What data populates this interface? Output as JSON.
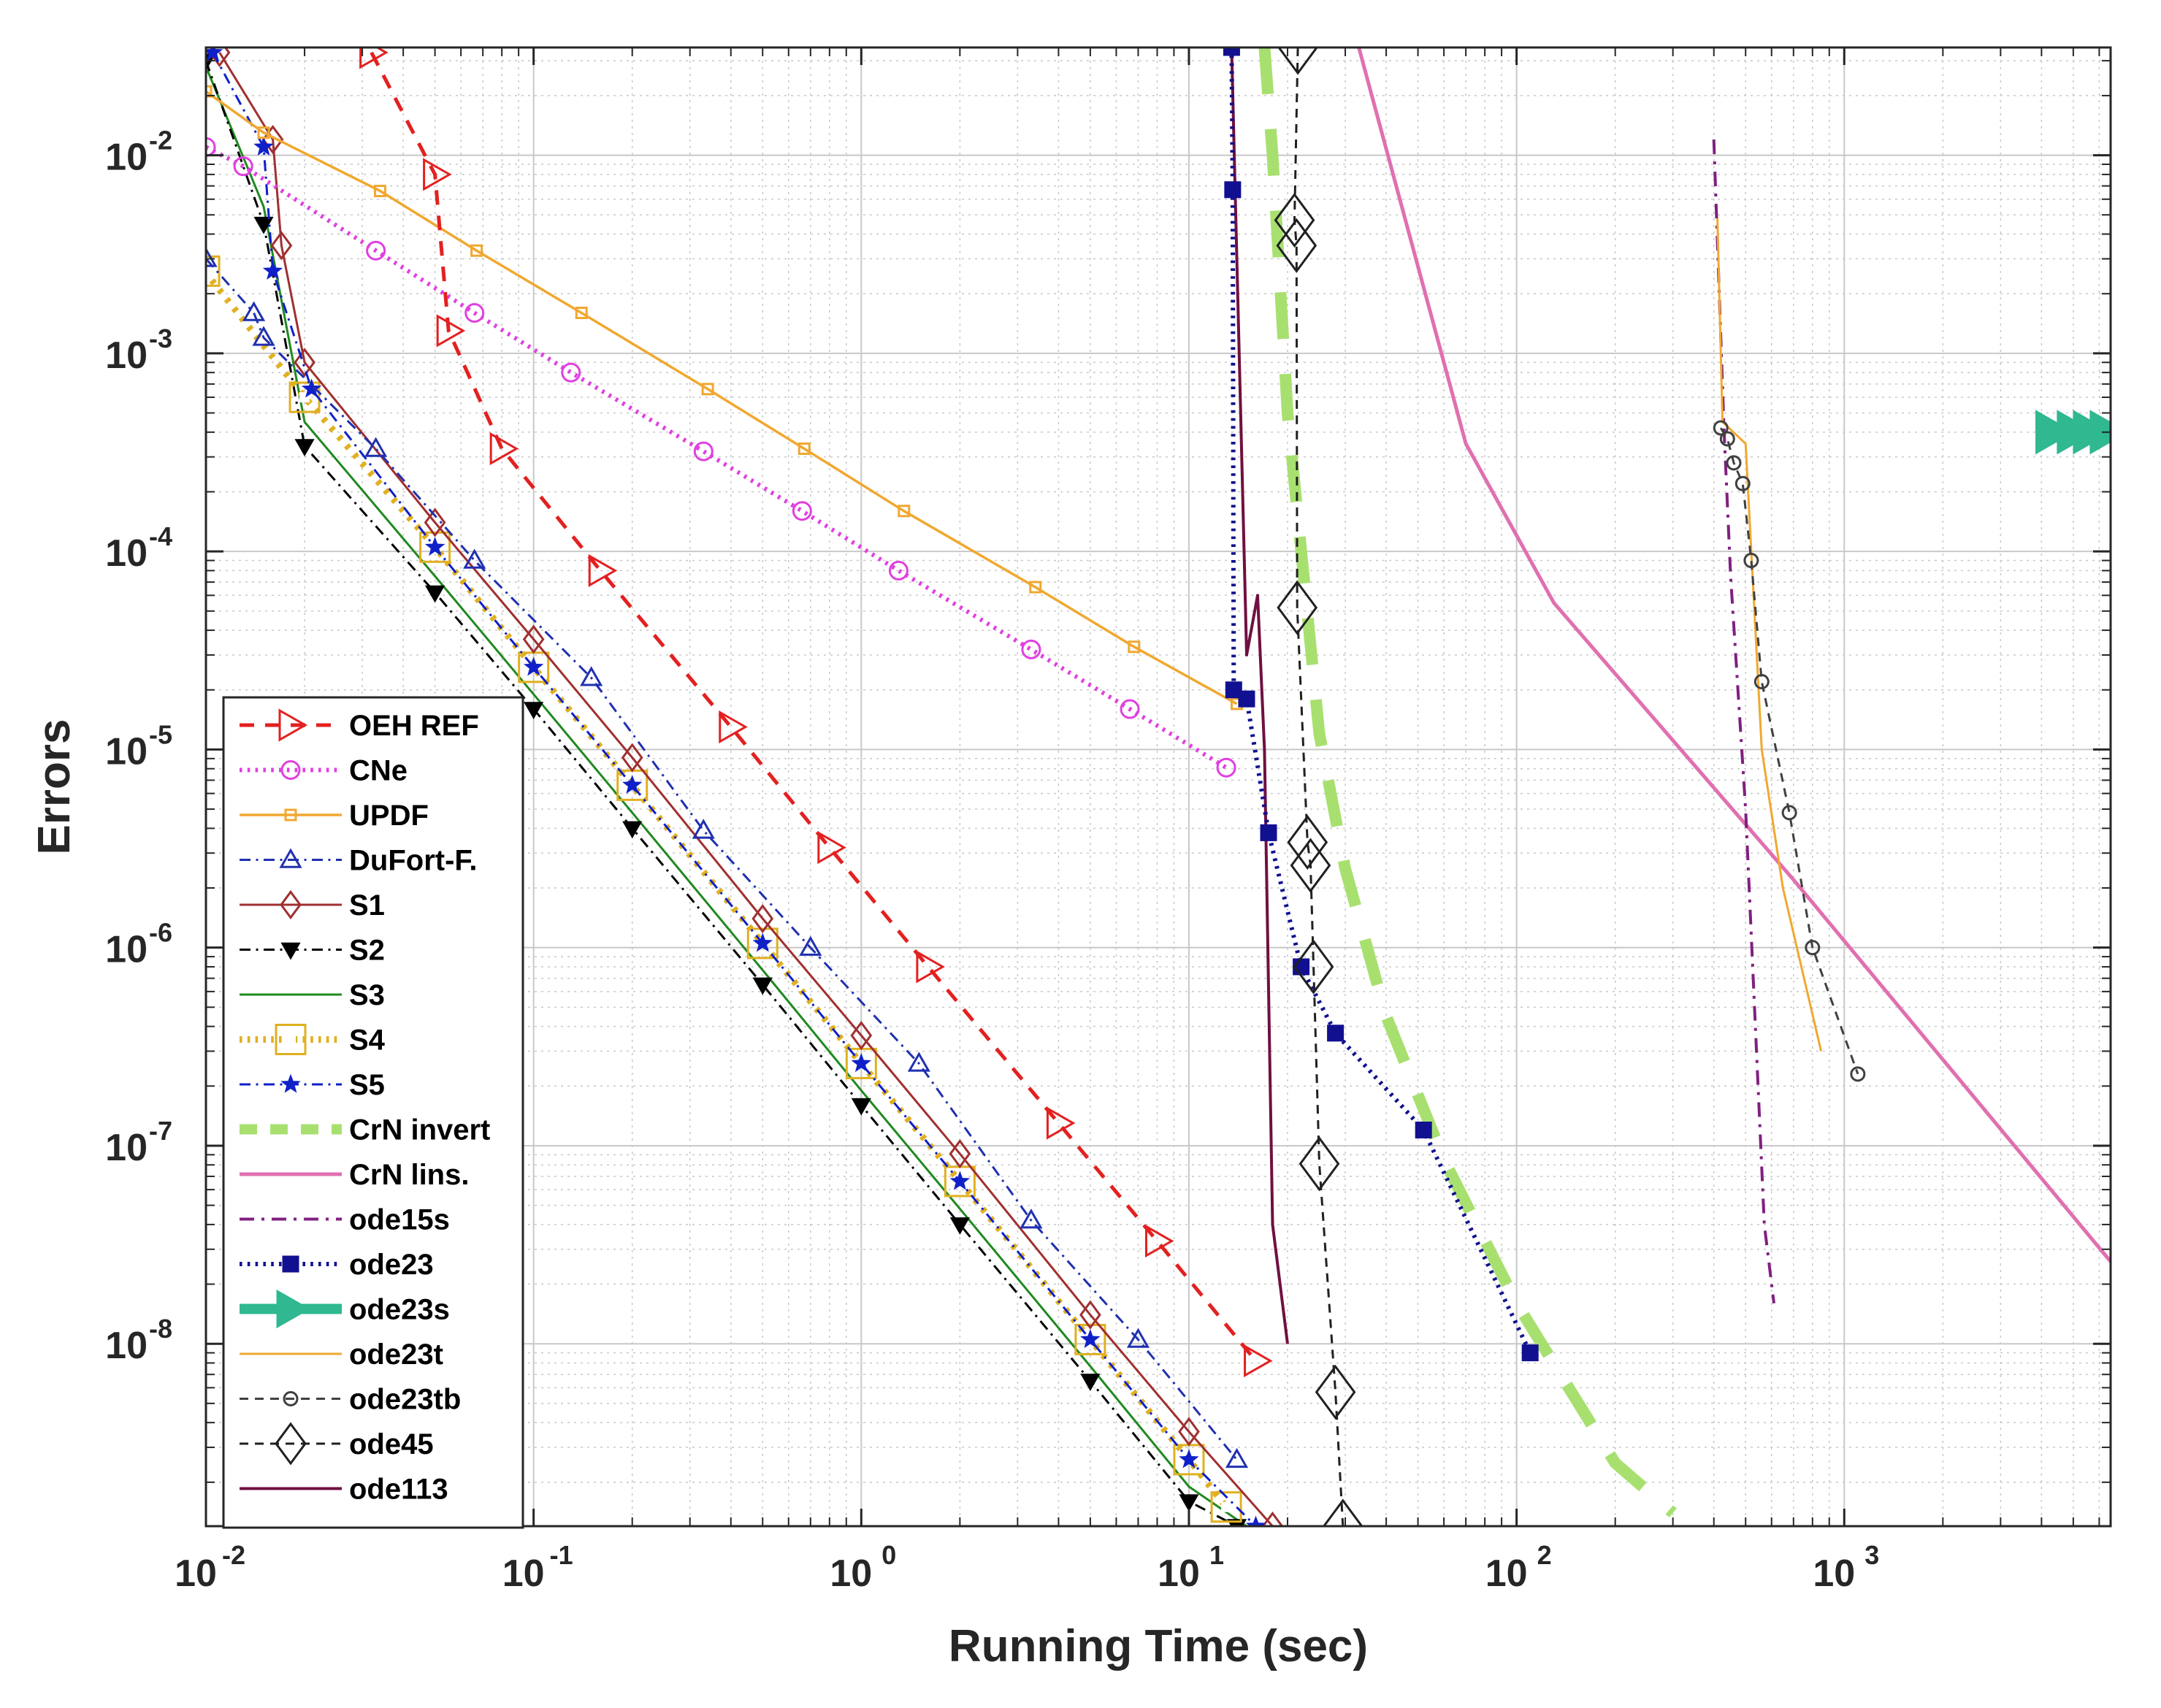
{
  "chart_data": {
    "type": "line",
    "title": "",
    "xlabel": "Running Time (sec)",
    "ylabel": "Errors",
    "xscale": "log",
    "yscale": "log",
    "xlim": [
      0.01,
      6500
    ],
    "ylim": [
      1.2e-09,
      0.035
    ],
    "grid": true,
    "minor_grid": true,
    "legend_position": "bottom-left",
    "x_ticks": [
      {
        "value": 0.01,
        "base": "10",
        "exp": "-2"
      },
      {
        "value": 0.1,
        "base": "10",
        "exp": "-1"
      },
      {
        "value": 1,
        "base": "10",
        "exp": "0"
      },
      {
        "value": 10,
        "base": "10",
        "exp": "1"
      },
      {
        "value": 100,
        "base": "10",
        "exp": "2"
      },
      {
        "value": 1000,
        "base": "10",
        "exp": "3"
      }
    ],
    "y_ticks": [
      {
        "value": 1e-08,
        "base": "10",
        "exp": "-8"
      },
      {
        "value": 1e-07,
        "base": "10",
        "exp": "-7"
      },
      {
        "value": 1e-06,
        "base": "10",
        "exp": "-6"
      },
      {
        "value": 1e-05,
        "base": "10",
        "exp": "-5"
      },
      {
        "value": 0.0001,
        "base": "10",
        "exp": "-4"
      },
      {
        "value": 0.001,
        "base": "10",
        "exp": "-3"
      },
      {
        "value": 0.01,
        "base": "10",
        "exp": "-2"
      }
    ],
    "series": [
      {
        "name": "OEH REF",
        "color": "#e32020",
        "dash": "dash",
        "width": 5,
        "marker": "tri-right",
        "marker_size": 20,
        "x": [
          0.032,
          0.05,
          0.055,
          0.08,
          0.16,
          0.4,
          0.8,
          1.6,
          4,
          8,
          16
        ],
        "y": [
          0.033,
          0.008,
          0.0013,
          0.00033,
          8e-05,
          1.3e-05,
          3.2e-06,
          8e-07,
          1.3e-07,
          3.3e-08,
          8.2e-09
        ]
      },
      {
        "name": "CNe",
        "color": "#e040e0",
        "dash": "dot",
        "width": 6,
        "marker": "circle",
        "marker_size": 12,
        "x": [
          0.01,
          0.013,
          0.033,
          0.066,
          0.13,
          0.33,
          0.66,
          1.3,
          3.3,
          6.6,
          13
        ],
        "y": [
          0.011,
          0.0088,
          0.0033,
          0.0016,
          0.0008,
          0.00032,
          0.00016,
          8e-05,
          3.2e-05,
          1.6e-05,
          8.1e-06
        ]
      },
      {
        "name": "UPDF",
        "color": "#f0a830",
        "dash": "solid",
        "width": 3.5,
        "marker": "square",
        "marker_size": 7,
        "x": [
          0.01,
          0.015,
          0.034,
          0.067,
          0.14,
          0.34,
          0.67,
          1.35,
          3.4,
          6.8,
          14
        ],
        "y": [
          0.021,
          0.013,
          0.0066,
          0.0033,
          0.0016,
          0.00066,
          0.00033,
          0.00016,
          6.6e-05,
          3.3e-05,
          1.7e-05
        ]
      },
      {
        "name": "DuFort-F.",
        "color": "#2030b0",
        "dash": "dashdot",
        "width": 3,
        "marker": "triangle",
        "marker_size": 13,
        "x": [
          0.01,
          0.014,
          0.015,
          0.033,
          0.066,
          0.15,
          0.33,
          0.7,
          1.5,
          3.3,
          7,
          14
        ],
        "y": [
          0.003,
          0.0016,
          0.0012,
          0.00033,
          9e-05,
          2.3e-05,
          3.9e-06,
          1e-06,
          2.6e-07,
          4.2e-08,
          1.05e-08,
          2.6e-09
        ]
      },
      {
        "name": "S1",
        "color": "#a03030",
        "dash": "solid",
        "width": 3,
        "marker": "diamond",
        "marker_size": 13,
        "x": [
          0.011,
          0.016,
          0.017,
          0.02,
          0.05,
          0.1,
          0.2,
          0.5,
          1,
          2,
          5,
          10,
          18
        ],
        "y": [
          0.033,
          0.012,
          0.0035,
          0.0009,
          0.00014,
          3.6e-05,
          9.1e-06,
          1.4e-06,
          3.6e-07,
          9.1e-08,
          1.4e-08,
          3.6e-09,
          1.2e-09
        ]
      },
      {
        "name": "S2",
        "color": "#000000",
        "dash": "dashdot",
        "width": 3,
        "marker": "tri-down",
        "marker_size": 11,
        "x": [
          0.01,
          0.015,
          0.02,
          0.05,
          0.1,
          0.2,
          0.5,
          1,
          2,
          5,
          10,
          14
        ],
        "y": [
          0.03,
          0.0045,
          0.00034,
          6.2e-05,
          1.6e-05,
          4e-06,
          6.5e-07,
          1.6e-07,
          4e-08,
          6.5e-09,
          1.6e-09,
          1.2e-09
        ]
      },
      {
        "name": "S3",
        "color": "#208a20",
        "dash": "solid",
        "width": 3,
        "marker": "none",
        "marker_size": 0,
        "x": [
          0.01,
          0.015,
          0.02,
          0.05,
          0.1,
          0.2,
          0.5,
          1,
          2,
          5,
          10,
          15
        ],
        "y": [
          0.028,
          0.0055,
          0.00045,
          7.5e-05,
          1.9e-05,
          4.8e-06,
          7.7e-07,
          1.9e-07,
          4.8e-08,
          7.7e-09,
          1.9e-09,
          1.2e-09
        ]
      },
      {
        "name": "S4",
        "color": "#e0b020",
        "dash": "dot",
        "width": 9,
        "marker": "square",
        "marker_size": 20,
        "x": [
          0.0099,
          0.02,
          0.05,
          0.1,
          0.2,
          0.5,
          1,
          2,
          5,
          10,
          13
        ],
        "y": [
          0.0026,
          0.0006,
          0.000105,
          2.6e-05,
          6.6e-06,
          1.05e-06,
          2.6e-07,
          6.6e-08,
          1.05e-08,
          2.6e-09,
          1.5e-09
        ]
      },
      {
        "name": "S5",
        "color": "#1020c8",
        "dash": "dashdot",
        "width": 3,
        "marker": "star",
        "marker_size": 13,
        "x": [
          0.0105,
          0.015,
          0.016,
          0.021,
          0.05,
          0.1,
          0.2,
          0.5,
          1,
          2,
          5,
          10,
          16
        ],
        "y": [
          0.033,
          0.011,
          0.0026,
          0.00066,
          0.000105,
          2.6e-05,
          6.6e-06,
          1.05e-06,
          2.6e-07,
          6.6e-08,
          1.05e-08,
          2.6e-09,
          1.2e-09
        ]
      },
      {
        "name": "CrN invert",
        "color": "#a8e070",
        "dash": "dash",
        "width": 16,
        "marker": "none",
        "marker_size": 0,
        "x": [
          17,
          18,
          20,
          25,
          30,
          40,
          60,
          100,
          200,
          300
        ],
        "y": [
          0.035,
          0.01,
          0.0005,
          1.2e-05,
          2.5e-06,
          4.5e-07,
          8.5e-08,
          1.6e-08,
          2.5e-09,
          1.4e-09
        ]
      },
      {
        "name": "CrN lins.",
        "color": "#e070b0",
        "dash": "solid",
        "width": 5,
        "marker": "none",
        "marker_size": 0,
        "x": [
          33,
          70,
          130,
          700,
          6500
        ],
        "y": [
          0.035,
          0.00035,
          5.5e-05,
          2.2e-06,
          2.6e-08
        ]
      },
      {
        "name": "ode15s",
        "color": "#802080",
        "dash": "dashdot",
        "width": 4,
        "marker": "none",
        "marker_size": 0,
        "x": [
          400,
          430,
          450,
          500,
          570,
          610
        ],
        "y": [
          0.012,
          0.0004,
          7.5e-05,
          5e-06,
          4e-08,
          1.6e-08
        ]
      },
      {
        "name": "ode23",
        "color": "#101090",
        "dash": "dot",
        "width": 6,
        "marker": "square",
        "marker_size": 10,
        "x": [
          13.5,
          13.6,
          13.7,
          15,
          17.5,
          22,
          28,
          52,
          110
        ],
        "y": [
          0.035,
          0.0067,
          2e-05,
          1.8e-05,
          3.8e-06,
          8e-07,
          3.7e-07,
          1.2e-07,
          9e-09
        ]
      },
      {
        "name": "ode23s",
        "color": "#30b890",
        "dash": "solid",
        "width": 22,
        "marker": "tri-right",
        "marker_size": 28,
        "x": [
          4300,
          5000,
          5600,
          6300
        ],
        "y": [
          0.0004,
          0.0004,
          0.0004,
          0.0004
        ]
      },
      {
        "name": "ode23t",
        "color": "#f0a830",
        "dash": "solid",
        "width": 3,
        "marker": "none",
        "marker_size": 0,
        "x": [
          410,
          425,
          500,
          560,
          650,
          850
        ],
        "y": [
          0.0048,
          0.00045,
          0.00035,
          1e-05,
          2e-06,
          3e-07
        ]
      },
      {
        "name": "ode23tb",
        "color": "#404040",
        "dash": "dash",
        "width": 3,
        "marker": "circle",
        "marker_size": 9,
        "x": [
          420,
          440,
          460,
          490,
          520,
          560,
          680,
          800,
          1100
        ],
        "y": [
          0.00042,
          0.00037,
          0.00028,
          0.00022,
          9e-05,
          2.2e-05,
          4.8e-06,
          1e-06,
          2.3e-07
        ]
      },
      {
        "name": "ode45",
        "color": "#202020",
        "dash": "dash",
        "width": 3,
        "marker": "diamond",
        "marker_size": 26,
        "x": [
          21.5,
          21,
          21.3,
          21.4,
          23,
          23.5,
          24,
          25,
          28,
          29.5
        ],
        "y": [
          0.035,
          0.0047,
          0.0035,
          5.2e-05,
          3.4e-06,
          2.6e-06,
          8e-07,
          8.1e-08,
          5.7e-09,
          1.2e-09
        ]
      },
      {
        "name": "ode113",
        "color": "#701040",
        "dash": "solid",
        "width": 4,
        "marker": "none",
        "marker_size": 0,
        "x": [
          13.5,
          15,
          16.2,
          17,
          18,
          20
        ],
        "y": [
          0.035,
          3e-05,
          6e-05,
          1e-05,
          4e-08,
          1e-08
        ]
      }
    ]
  }
}
